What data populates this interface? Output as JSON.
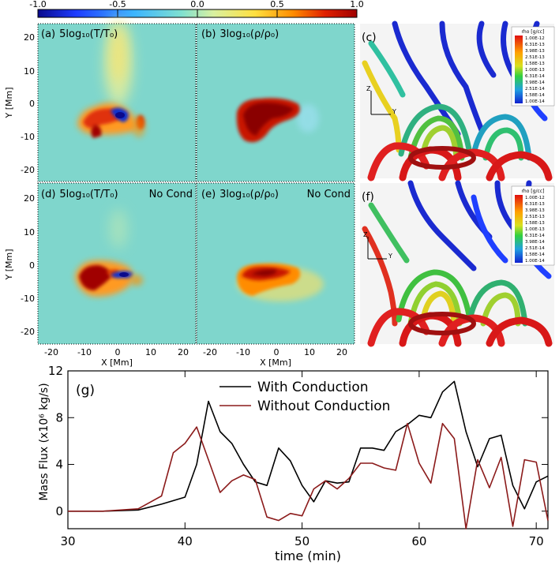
{
  "colorbar": {
    "ticks": [
      "-1.0",
      "-0.5",
      "0.0",
      "0.5",
      "1.0"
    ],
    "colors": [
      "#0a0a8c",
      "#1e3cff",
      "#3cb4ff",
      "#7fe0d0",
      "#d8f0a0",
      "#ffe040",
      "#ff8c00",
      "#e02000",
      "#a00000"
    ]
  },
  "panels": {
    "a": {
      "label": "(a)",
      "quantity": "5log₁₀(T/T₀)",
      "note": ""
    },
    "b": {
      "label": "(b)",
      "quantity": "3log₁₀(ρ/ρ₀)",
      "note": ""
    },
    "d": {
      "label": "(d)",
      "quantity": "5log₁₀(T/T₀)",
      "note": "No Cond"
    },
    "e": {
      "label": "(e)",
      "quantity": "3log₁₀(ρ/ρ₀)",
      "note": "No Cond"
    },
    "c": {
      "label": "(c)",
      "legend_title": "rho [g/cc]",
      "legend_values": [
        "1.00E-12",
        "6.31E-13",
        "3.98E-13",
        "2.51E-13",
        "1.58E-13",
        "1.00E-13",
        "6.31E-14",
        "3.98E-14",
        "2.51E-14",
        "1.58E-14",
        "1.00E-14"
      ]
    },
    "f": {
      "label": "(f)",
      "legend_title": "rho [g/cc]",
      "legend_values": [
        "1.00E-12",
        "6.31E-13",
        "3.98E-13",
        "2.51E-13",
        "1.58E-13",
        "1.00E-13",
        "6.31E-14",
        "3.98E-14",
        "2.51E-14",
        "1.58E-14",
        "1.00E-14"
      ]
    }
  },
  "axes": {
    "xlabel": "X [Mm]",
    "ylabel": "Y [Mm]",
    "xticks": [
      "-20",
      "-10",
      "0",
      "10",
      "20"
    ],
    "yticks": [
      "20",
      "10",
      "0",
      "-10",
      "-20"
    ],
    "axis3d": {
      "z": "Z",
      "y": "Y"
    }
  },
  "chart_data": {
    "type": "line",
    "panel_label": "(g)",
    "title": "",
    "xlabel": "time (min)",
    "ylabel": "Mass Flux (x10⁶ kg/s)",
    "xlim": [
      30,
      71
    ],
    "ylim": [
      -1.5,
      12
    ],
    "xticks": [
      30,
      40,
      50,
      60,
      70
    ],
    "yticks": [
      0,
      4,
      8,
      12
    ],
    "series": [
      {
        "name": "With Conduction",
        "color": "#000000",
        "x": [
          30,
          33,
          36,
          38,
          40,
          41,
          42,
          43,
          44,
          45,
          46,
          47,
          48,
          49,
          50,
          51,
          52,
          53,
          54,
          55,
          56,
          57,
          58,
          59,
          60,
          61,
          62,
          63,
          64,
          65,
          66,
          67,
          68,
          69,
          70,
          71
        ],
        "y": [
          0,
          0,
          0.1,
          0.6,
          1.2,
          4,
          9.4,
          6.8,
          5.8,
          4,
          2.5,
          2.2,
          5.4,
          4.3,
          2.2,
          0.8,
          2.6,
          2.4,
          2.5,
          5.4,
          5.4,
          5.2,
          6.8,
          7.4,
          8.2,
          8,
          10.2,
          11.1,
          6.8,
          3.8,
          6.2,
          6.5,
          2.2,
          0.2,
          2.5,
          3
        ]
      },
      {
        "name": "Without Conduction",
        "color": "#8b1a1a",
        "x": [
          30,
          33,
          36,
          38,
          39,
          40,
          41,
          42,
          43,
          44,
          45,
          46,
          47,
          48,
          49,
          50,
          51,
          52,
          53,
          54,
          55,
          56,
          57,
          58,
          59,
          60,
          61,
          62,
          63,
          64,
          65,
          66,
          67,
          68,
          69,
          70,
          71
        ],
        "y": [
          0,
          0,
          0.2,
          1.3,
          5,
          5.8,
          7.2,
          4.4,
          1.6,
          2.6,
          3.1,
          2.7,
          -0.5,
          -0.8,
          -0.2,
          -0.4,
          1.9,
          2.6,
          1.9,
          2.8,
          4.1,
          4.1,
          3.7,
          3.5,
          7.5,
          4.1,
          2.4,
          7.5,
          6.2,
          -1.5,
          4.4,
          2,
          4.6,
          -1.3,
          4.4,
          4.2,
          -0.8
        ]
      }
    ]
  }
}
